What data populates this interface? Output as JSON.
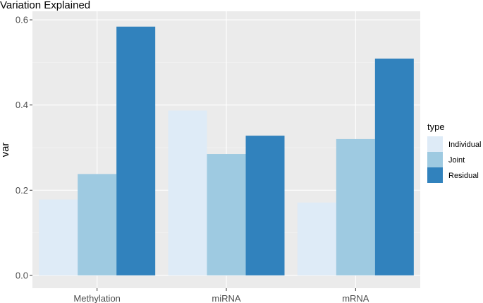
{
  "chart_data": {
    "type": "bar",
    "title": "Variation Explained",
    "xlabel": "",
    "ylabel": "var",
    "categories": [
      "Methylation",
      "miRNA",
      "mRNA"
    ],
    "ylim": [
      -0.03,
      0.62
    ],
    "yticks": [
      0.0,
      0.2,
      0.4,
      0.6
    ],
    "ytick_labels": [
      "0.0",
      "0.2",
      "0.4",
      "0.6"
    ],
    "grid": true,
    "legend_title": "type",
    "legend_position": "right",
    "series": [
      {
        "name": "Individual",
        "color": "#deebf7",
        "values": [
          0.178,
          0.387,
          0.171
        ]
      },
      {
        "name": "Joint",
        "color": "#9ecae1",
        "values": [
          0.238,
          0.285,
          0.32
        ]
      },
      {
        "name": "Residual",
        "color": "#3182bd",
        "values": [
          0.584,
          0.328,
          0.509
        ]
      }
    ]
  }
}
